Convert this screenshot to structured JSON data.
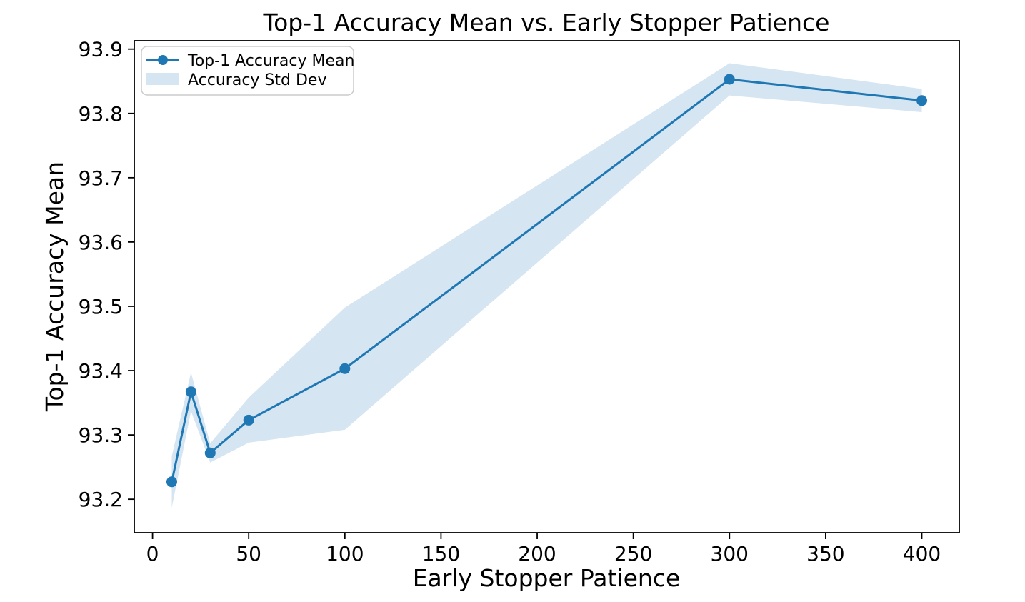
{
  "chart_data": {
    "type": "line",
    "title": "Top-1 Accuracy Mean vs. Early Stopper Patience",
    "xlabel": "Early Stopper Patience",
    "ylabel": "Top-1 Accuracy Mean",
    "x": [
      10,
      20,
      30,
      50,
      100,
      300,
      400
    ],
    "series": [
      {
        "name": "Top-1 Accuracy Mean",
        "values": [
          93.227,
          93.367,
          93.272,
          93.323,
          93.403,
          93.853,
          93.82
        ]
      }
    ],
    "band": {
      "name": "Accuracy Std Dev",
      "std": [
        0.04,
        0.03,
        0.015,
        0.035,
        0.095,
        0.025,
        0.018
      ]
    },
    "xticks": [
      0,
      50,
      100,
      150,
      200,
      250,
      300,
      350,
      400
    ],
    "yticks": [
      93.2,
      93.3,
      93.4,
      93.5,
      93.6,
      93.7,
      93.8,
      93.9
    ],
    "xlim": [
      -9.5,
      419.5
    ],
    "ylim": [
      93.148,
      93.913
    ],
    "grid": false,
    "legend": {
      "position": "upper-left",
      "entries": [
        "Top-1 Accuracy Mean",
        "Accuracy Std Dev"
      ]
    },
    "colors": {
      "line": "#1f77b4",
      "band": "#d5e5f1",
      "spine": "#000000",
      "legend_border": "#cccccc",
      "background": "#ffffff"
    }
  }
}
